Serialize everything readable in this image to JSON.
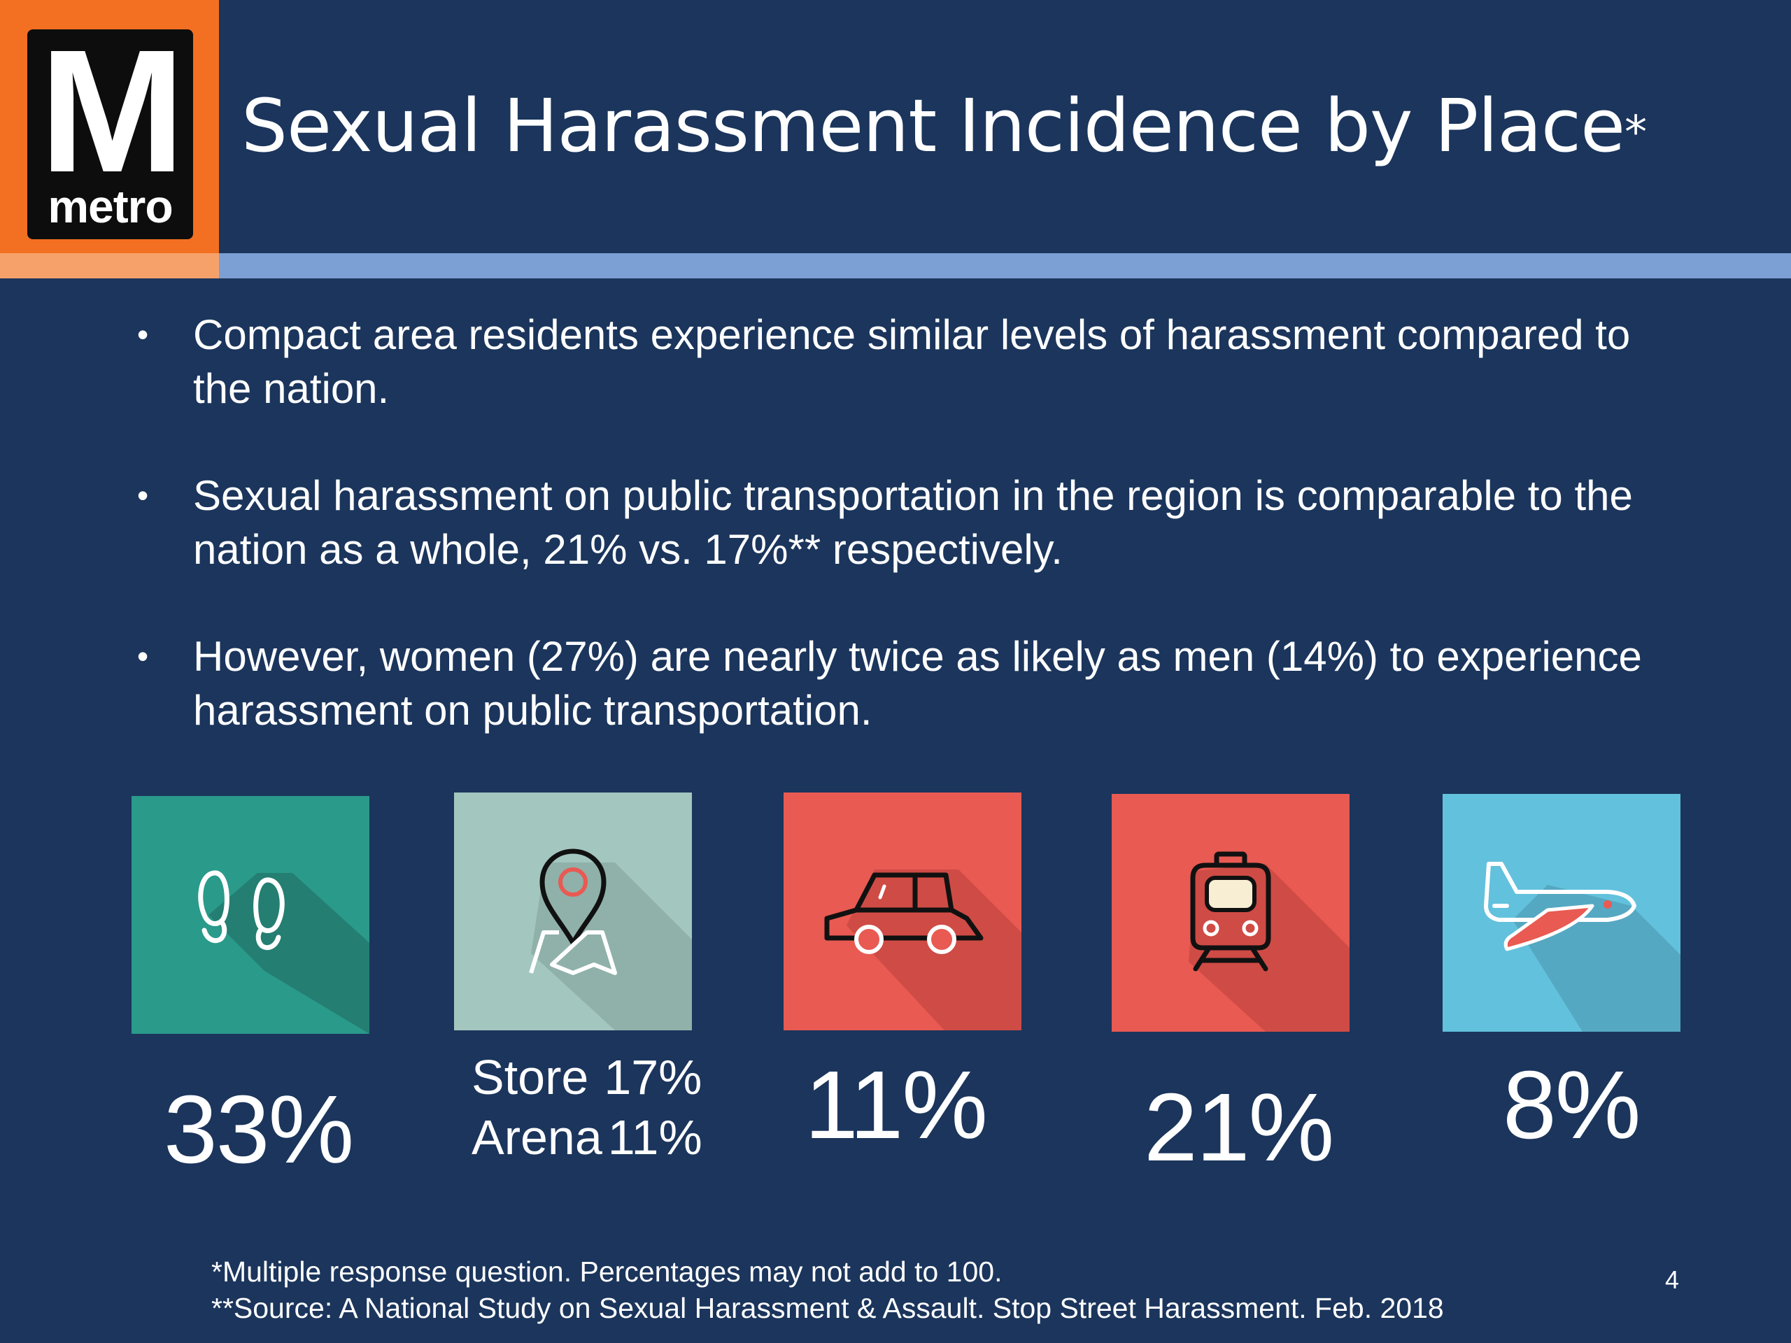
{
  "logo": {
    "letter": "M",
    "word": "metro"
  },
  "title": {
    "text": "Sexual Harassment Incidence by Place",
    "marker": "*"
  },
  "bullets": [
    "Compact area residents experience similar levels of harassment compared to the nation.",
    "Sexual harassment on public transportation in the region is comparable to the nation as a whole, 21% vs. 17%** respectively.",
    "However, women (27%) are nearly twice as likely as men (14%) to experience harassment on public transportation."
  ],
  "bullet_symbol": "•",
  "places": [
    {
      "icon": "footprints-icon",
      "color": "#2a9a8a",
      "value": "33%"
    },
    {
      "icon": "map-pin-icon",
      "color": "#a3c6bf",
      "lines": [
        {
          "label": "Store",
          "value": "17%"
        },
        {
          "label": "Arena",
          "value": "11%"
        }
      ]
    },
    {
      "icon": "car-icon",
      "color": "#e85a52",
      "value": "11%"
    },
    {
      "icon": "train-icon",
      "color": "#e85a52",
      "value": "21%"
    },
    {
      "icon": "airplane-icon",
      "color": "#62c1dc",
      "value": "8%"
    }
  ],
  "footnotes": [
    "*Multiple response question.  Percentages may not add to 100.",
    "**Source: A National Study on Sexual Harassment & Assault. Stop Street Harassment. Feb. 2018"
  ],
  "page_number": "4"
}
